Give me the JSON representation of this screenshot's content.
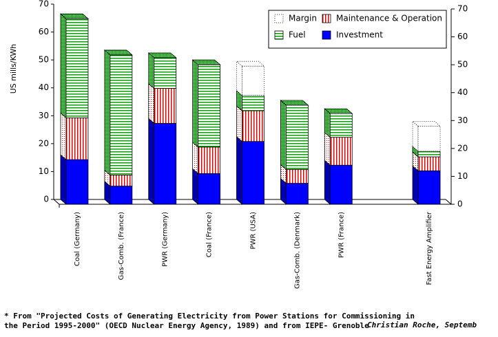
{
  "chart_data": {
    "type": "bar3d-stacked",
    "y_label": "US mills/KWh",
    "categories": [
      "Coal (Germany)",
      "Gas-Comb. (France)",
      "PWR (Germany)",
      "Coal (France)",
      "PWR (USA)",
      "Gas-Comb. (Denmark)",
      "PWR (France)",
      null,
      "Fast Energy Amplifier"
    ],
    "series": [
      {
        "name": "Investment",
        "color": "#0000ff",
        "values": [
          16,
          6.5,
          29,
          11,
          22.5,
          7.5,
          14,
          null,
          12
        ]
      },
      {
        "name": "Maintenance & Operation",
        "color": "#e00000",
        "values": [
          15,
          4,
          12.5,
          9.5,
          11,
          5,
          10,
          null,
          5
        ]
      },
      {
        "name": "Fuel",
        "color": "#00a000",
        "values": [
          35.5,
          43,
          11,
          29.5,
          5.5,
          23,
          8.5,
          null,
          2
        ]
      },
      {
        "name": "Margin",
        "color": "#000000",
        "values": [
          null,
          null,
          null,
          null,
          10.5,
          null,
          null,
          null,
          9
        ]
      }
    ],
    "ylim": [
      0,
      70
    ],
    "yticks": [
      0,
      10,
      20,
      30,
      40,
      50,
      60,
      70
    ],
    "y2lim": [
      0,
      70
    ],
    "y2ticks": [
      0,
      10,
      20,
      30,
      40,
      50,
      60,
      70
    ],
    "legend": "upper right",
    "footnote": [
      "* From \"Projected Costs of Generating Electricity from Power Stations for Commissioning in",
      "the Period 1995-2000\" (OECD Nuclear Energy Agency, 1989)  and from IEPE- Grenoble"
    ],
    "author": "Christian Roche, Septemb"
  }
}
